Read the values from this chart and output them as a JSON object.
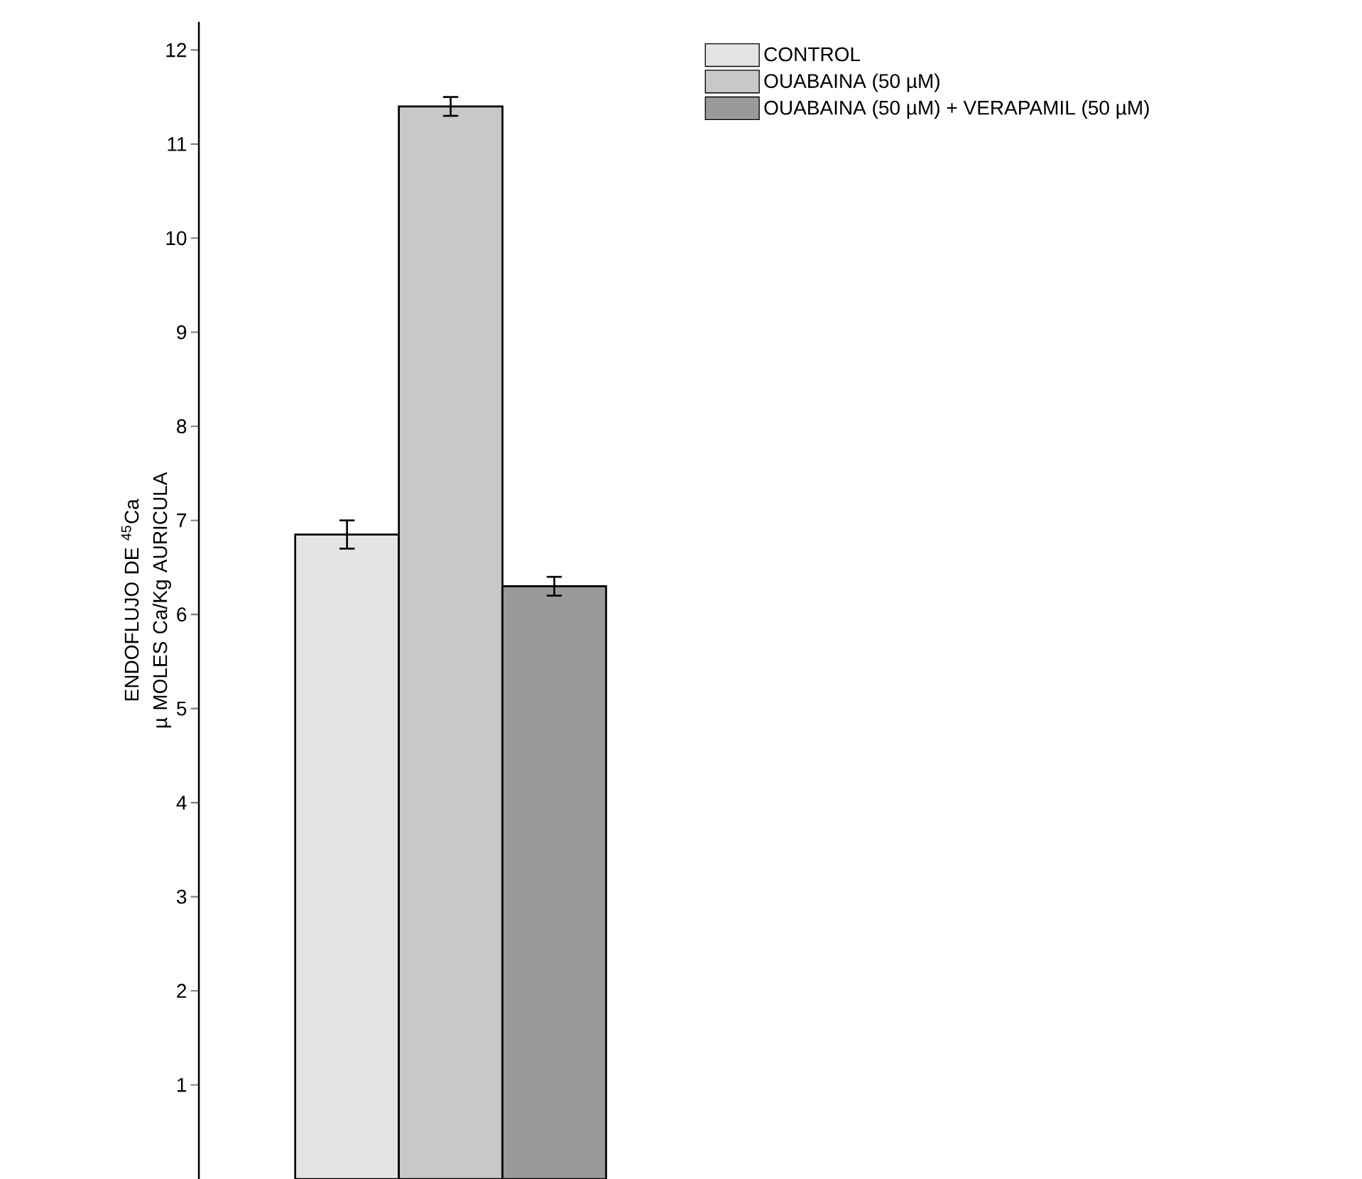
{
  "chart_data": {
    "type": "bar",
    "ylabel": "ENDOFLUJO DE $^{45}$Ca\nµ MOLES Ca/Kg AURICULA",
    "categories": [
      null
    ],
    "series": [
      {
        "name": "CONTROL",
        "color": "#e4e4e4",
        "values": [
          6.85
        ],
        "errors": [
          0.15
        ]
      },
      {
        "name": "OUABAINA (50 µM)",
        "color": "#c8c8c8",
        "values": [
          11.4
        ],
        "errors": [
          0.1
        ]
      },
      {
        "name": "OUABAINA (50 µM) + VERAPAMIL (50 µM)",
        "color": "#9a9a9a",
        "values": [
          6.3
        ],
        "errors": [
          0.1
        ]
      }
    ],
    "ylim": [
      0,
      12.3
    ],
    "yticks": [
      1,
      2,
      3,
      4,
      5,
      6,
      7,
      8,
      9,
      10,
      11,
      12
    ],
    "legend": "top right",
    "tick_labels": "y"
  }
}
